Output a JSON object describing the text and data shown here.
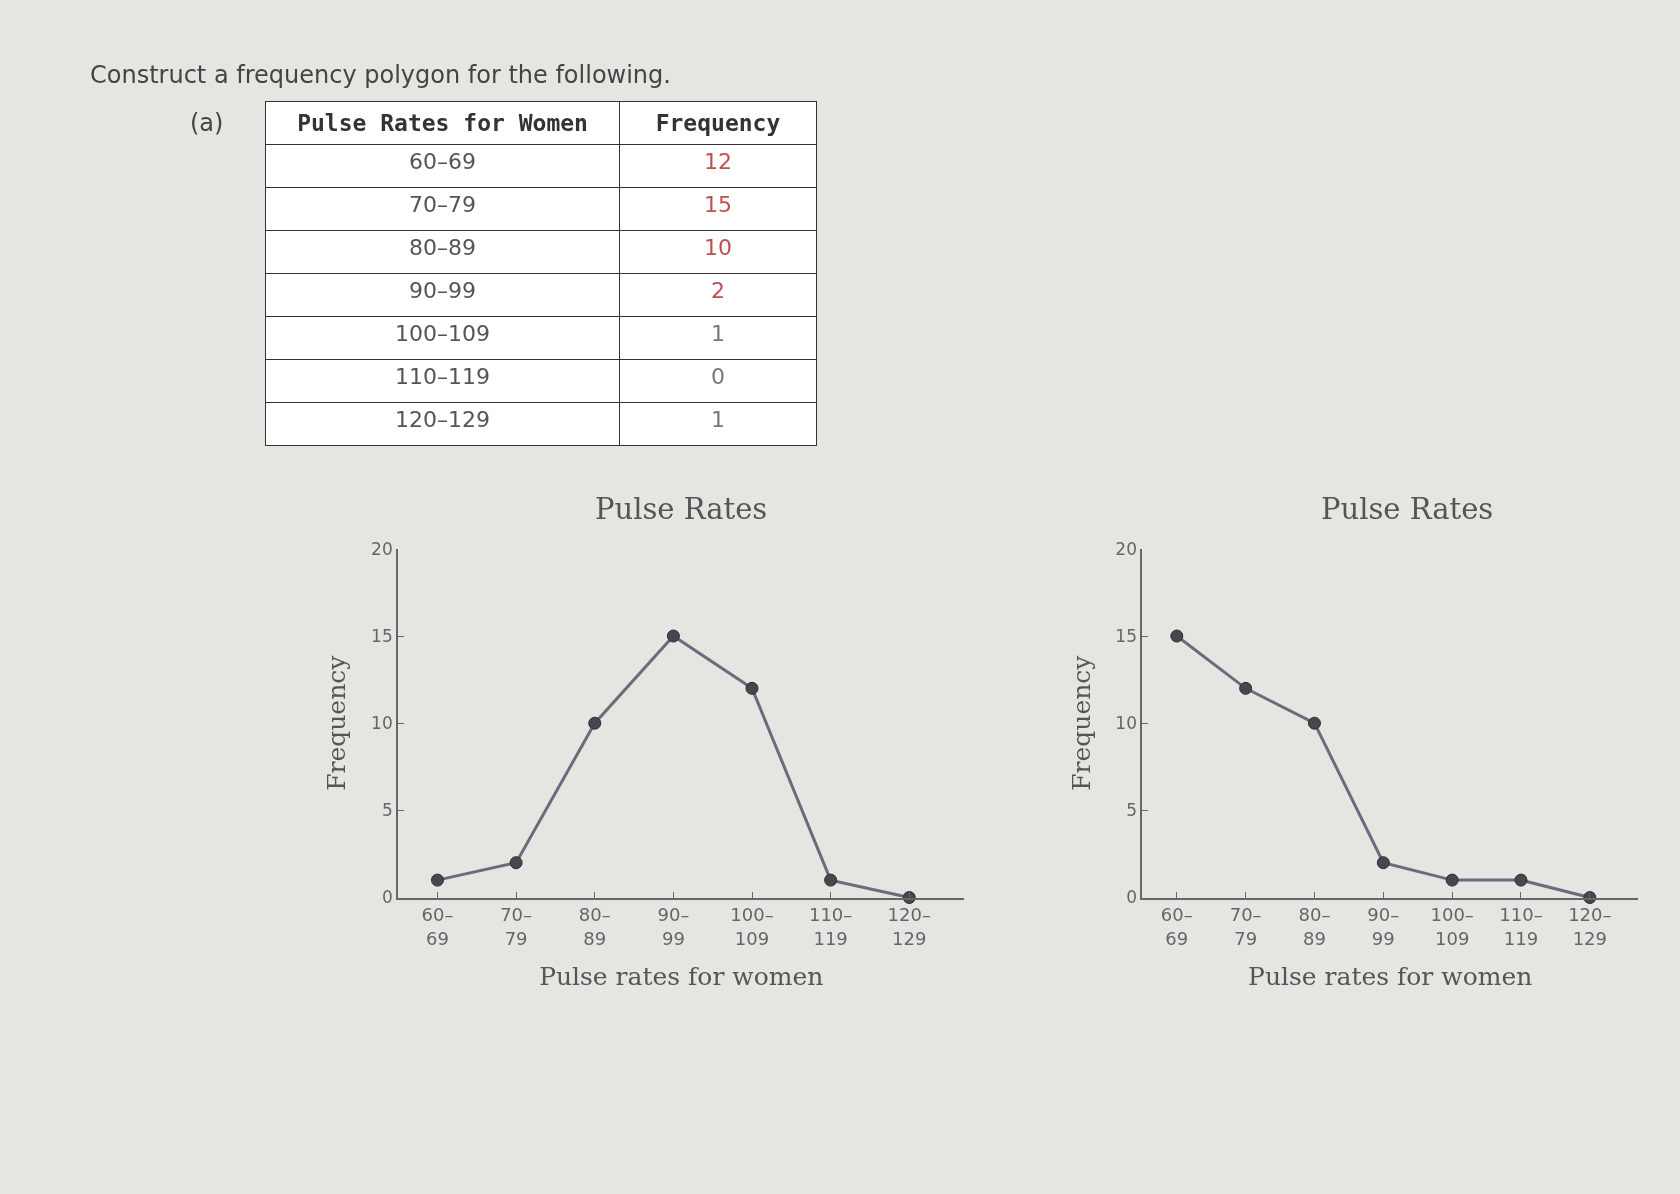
{
  "chart_data": [
    {
      "type": "other",
      "title": "Construct a frequency polygon for the following.",
      "annotations": [
        "(a)",
        "Pulse Rates for Women",
        "Frequency",
        "60–69",
        "12",
        "70–79",
        "15",
        "80–89",
        "10",
        "90–99",
        "2",
        "100–109",
        "1",
        "110–119",
        "0",
        "120–129",
        "1"
      ]
    },
    {
      "type": "line",
      "title": "Pulse Rates",
      "xlabel": "Pulse rates for women",
      "ylabel": "Frequency",
      "categories": [
        "60–\n69",
        "70–\n79",
        "80–\n89",
        "90–\n99",
        "100–\n109",
        "110–\n119",
        "120–\n129"
      ],
      "series": [
        {
          "color": "#6e6a7c",
          "values": [
            1,
            2,
            10,
            15,
            12,
            1,
            0
          ]
        }
      ],
      "ylim": [
        0,
        20
      ],
      "yticks": [
        0,
        5,
        10,
        15,
        20
      ],
      "grid": false,
      "marker": "circle",
      "line_style": "solid"
    },
    {
      "type": "line",
      "title": "Pulse Rates",
      "xlabel": "Pulse rates for women",
      "ylabel": "Frequency",
      "categories": [
        "60–\n69",
        "70–\n79",
        "80–\n89",
        "90–\n99",
        "100–\n109",
        "110–\n119",
        "120–\n129"
      ],
      "series": [
        {
          "color": "#6e6a7c",
          "values": [
            15,
            12,
            10,
            2,
            1,
            1,
            0
          ]
        }
      ],
      "ylim": [
        0,
        20
      ],
      "yticks": [
        0,
        5,
        10,
        15,
        20
      ],
      "grid": false,
      "marker": "circle",
      "line_style": "solid"
    }
  ]
}
